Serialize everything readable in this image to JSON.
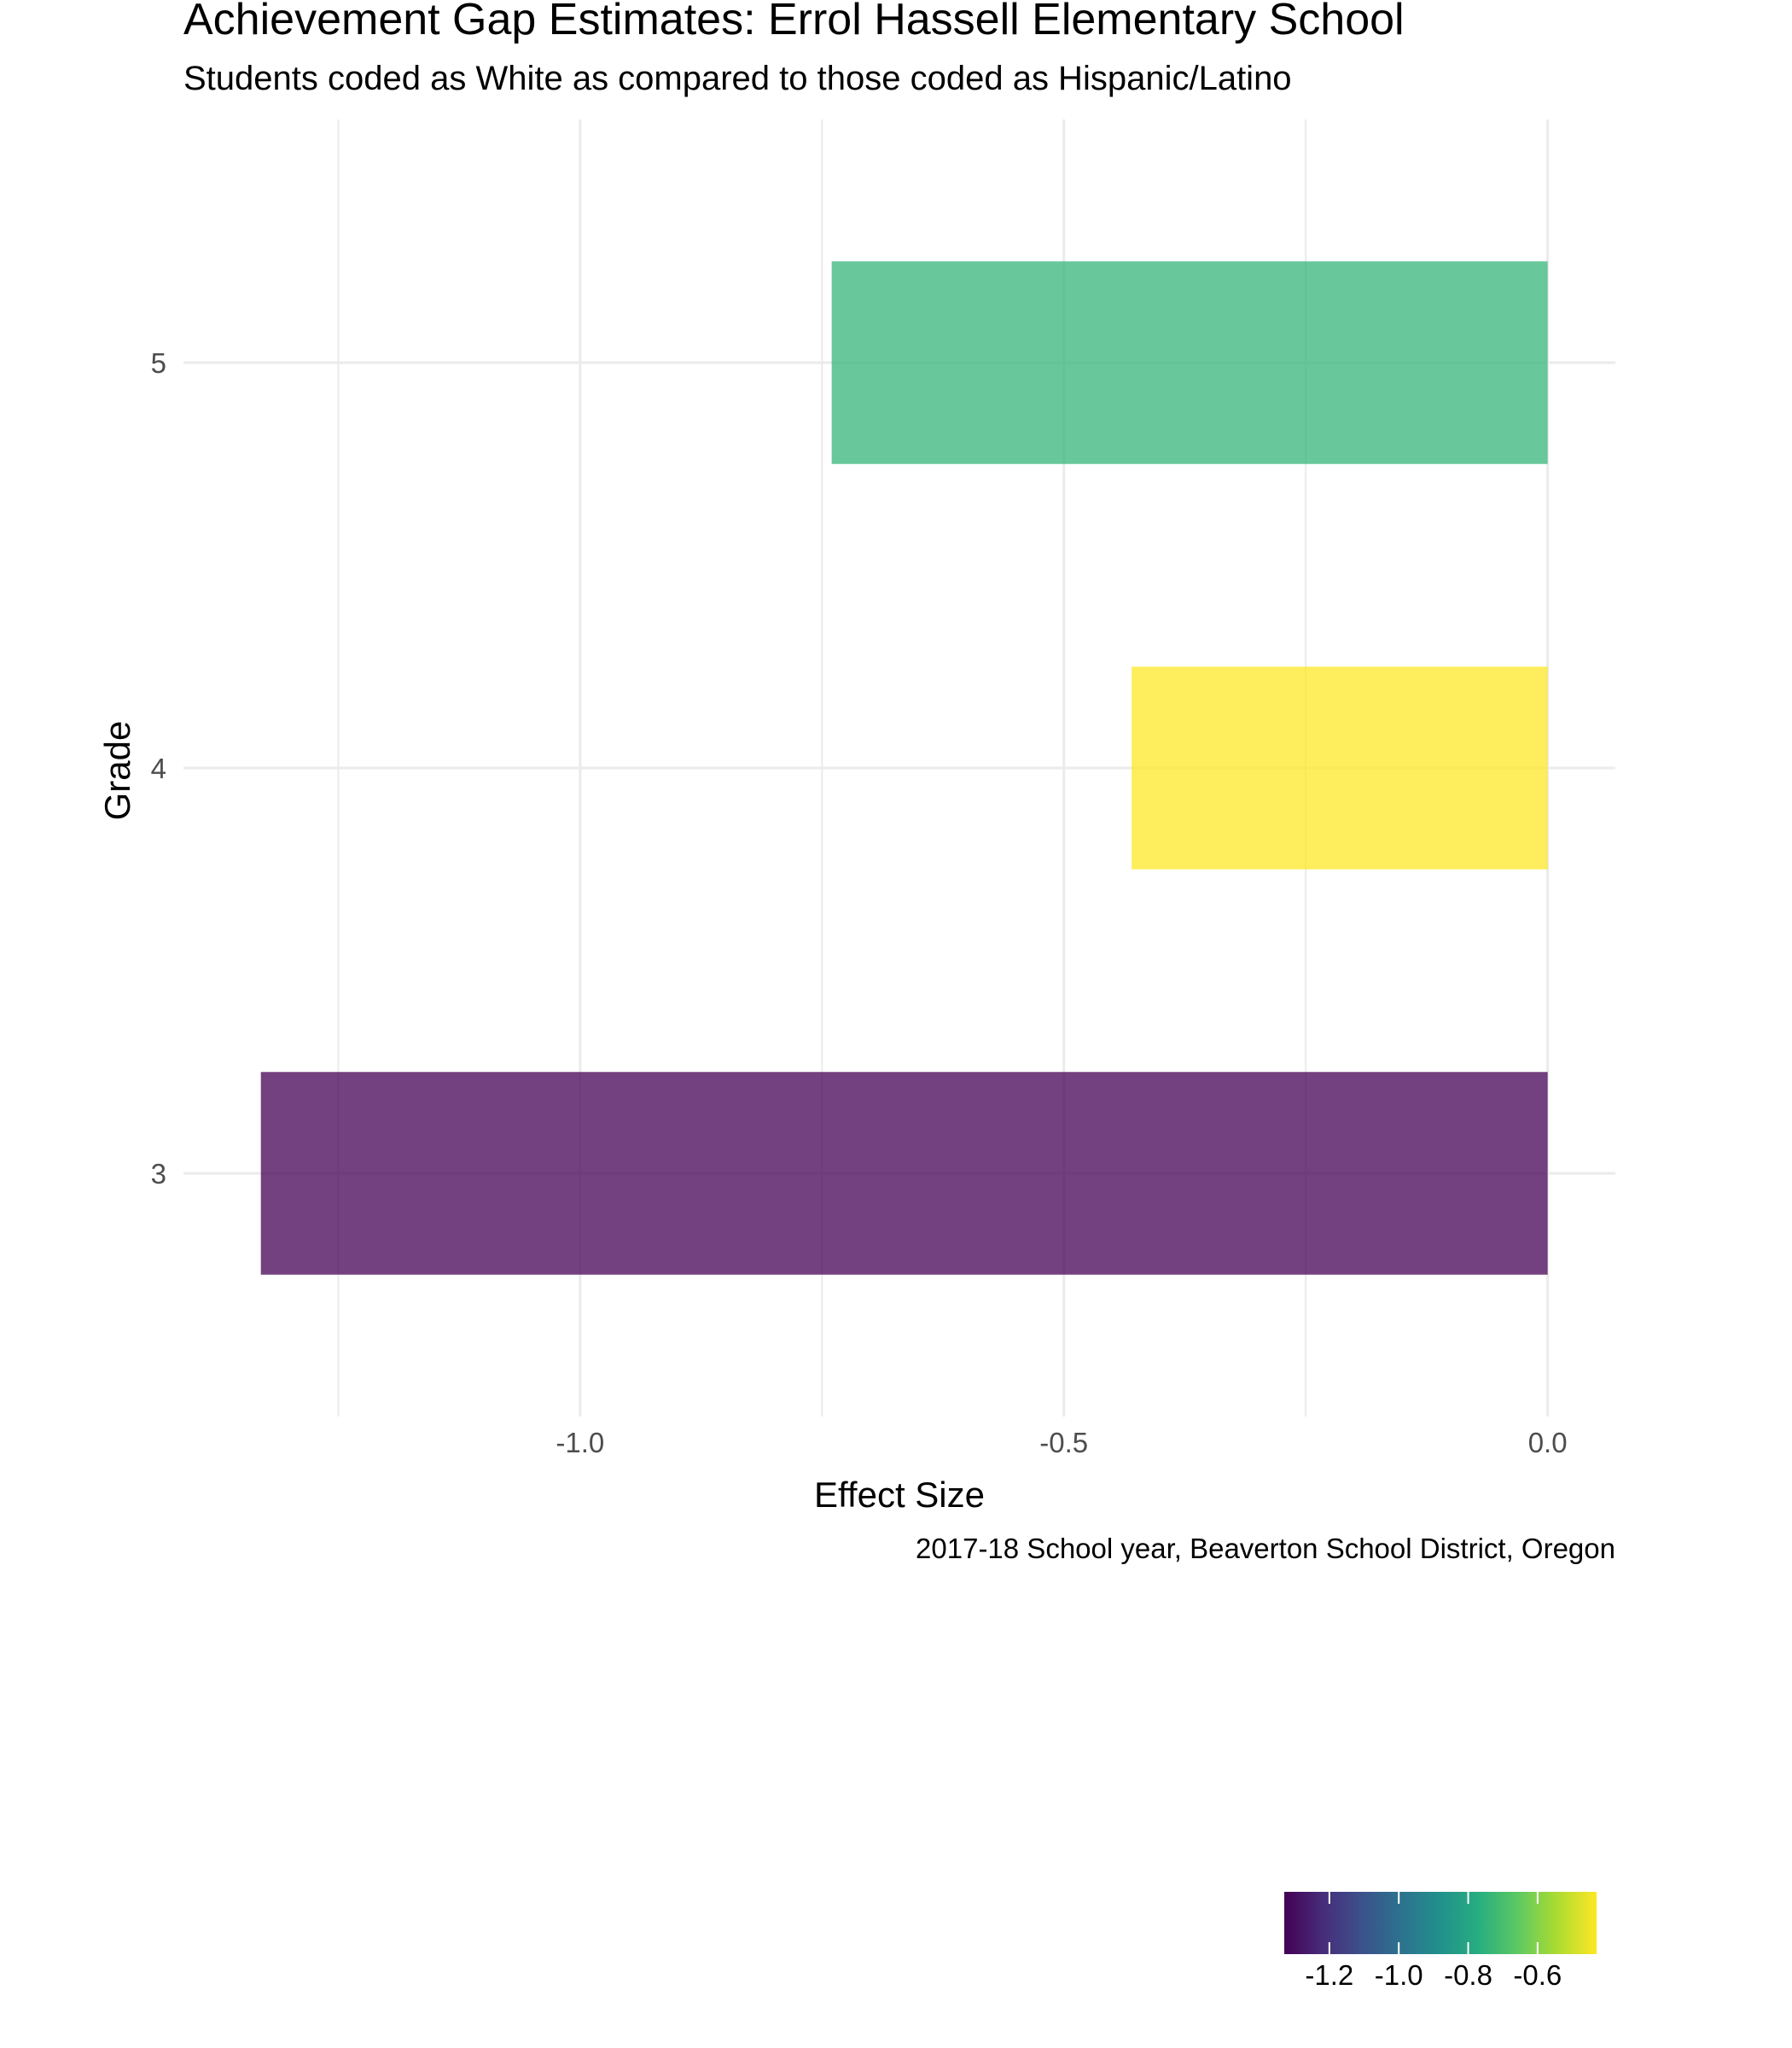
{
  "chart_data": {
    "type": "bar",
    "orientation": "horizontal",
    "title": "Achievement Gap Estimates: Errol Hassell Elementary School",
    "subtitle": "Students coded as White as compared to those coded as Hispanic/Latino",
    "xlabel": "Effect Size",
    "ylabel": "Grade",
    "caption": "2017-18 School year, Beaverton School District, Oregon",
    "categories": [
      "3",
      "4",
      "5"
    ],
    "values": [
      -1.33,
      -0.43,
      -0.74
    ],
    "xlim": [
      -1.41,
      0.07
    ],
    "x_ticks": [
      -1.0,
      -0.5,
      0.0
    ],
    "x_tick_labels": [
      "-1.0",
      "-0.5",
      "0.0"
    ],
    "grid": true,
    "bar_opacity": 0.75,
    "colorscale": "viridis",
    "color_range": [
      -1.33,
      -0.43
    ],
    "legend": {
      "position": "bottom-right",
      "ticks": [
        -1.2,
        -1.0,
        -0.8,
        -0.6
      ],
      "tick_labels": [
        "-1.2",
        "-1.0",
        "-0.8",
        "-0.6"
      ]
    }
  }
}
